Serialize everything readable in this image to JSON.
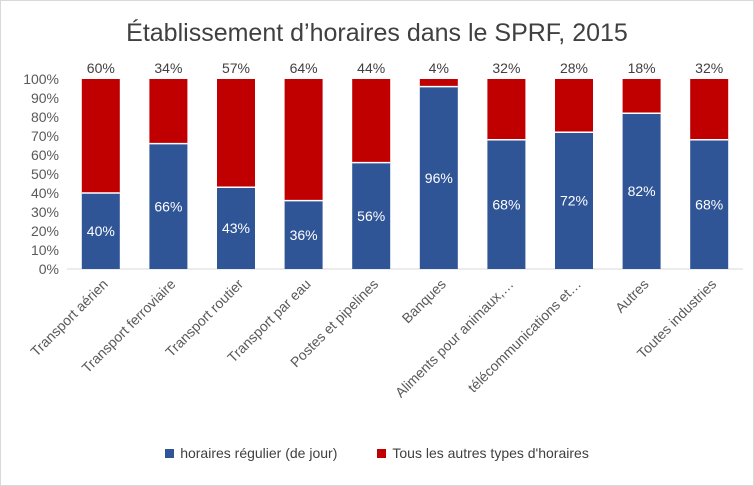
{
  "chart_data": {
    "type": "bar",
    "stacked": true,
    "title": "Établissement d’horaires dans le SPRF, 2015",
    "categories": [
      "Transport aérien",
      "Transport ferroviaire",
      "Transport routier",
      "Transport par eau",
      "Postes et pipelines",
      "Banques",
      "Aliments pour animaux,…",
      "télécommunications et…",
      "Autres",
      "Toutes industries"
    ],
    "series": [
      {
        "name": "horaires régulier (de jour)",
        "color": "#2f5597",
        "values": [
          40,
          66,
          43,
          36,
          56,
          96,
          68,
          72,
          82,
          68
        ],
        "labels": [
          "40%",
          "66%",
          "43%",
          "36%",
          "56%",
          "96%",
          "68%",
          "72%",
          "82%",
          "68%"
        ]
      },
      {
        "name": "Tous les autres types d'horaires",
        "color": "#c00000",
        "values": [
          60,
          34,
          57,
          64,
          44,
          4,
          32,
          28,
          18,
          32
        ],
        "labels": [
          "60%",
          "34%",
          "57%",
          "64%",
          "44%",
          "4%",
          "32%",
          "28%",
          "18%",
          "32%"
        ]
      }
    ],
    "yticks": [
      "0%",
      "10%",
      "20%",
      "30%",
      "40%",
      "50%",
      "60%",
      "70%",
      "80%",
      "90%",
      "100%"
    ],
    "ylim": [
      0,
      100
    ],
    "legend_position": "bottom"
  }
}
